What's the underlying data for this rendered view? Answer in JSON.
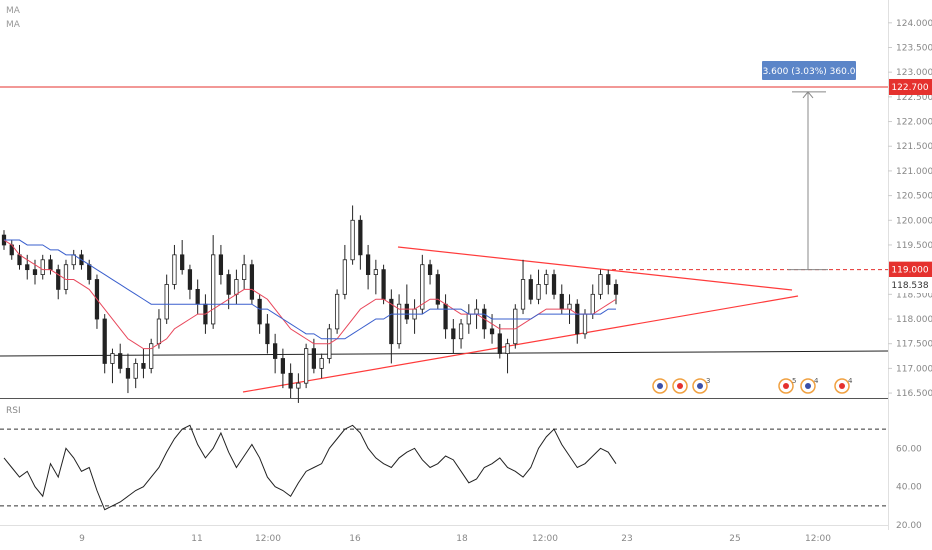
{
  "indicators": {
    "ma1": "MA",
    "ma2": "MA",
    "rsi": "RSI"
  },
  "colors": {
    "up": "#222222",
    "down": "#222222",
    "ma_fast": "#e8485c",
    "ma_slow": "#3a5fcd",
    "trendline": "#ff3b3b",
    "resistance": "#e5312e",
    "support": "#222222",
    "rsi": "#222222",
    "badge_bg": "#5b85c8",
    "price_tag_red": "#e5312e"
  },
  "measure_label": "3.600 (3.03%) 360.0",
  "price_tags": {
    "resistance": "122.700",
    "target": "119.000",
    "last": "118.538"
  },
  "event_marker_labels": [
    "3",
    "5",
    "4",
    "4"
  ],
  "chart_data": {
    "type": "line",
    "candles": [
      [
        119.7,
        119.8,
        119.4,
        119.5
      ],
      [
        119.5,
        119.6,
        119.2,
        119.3
      ],
      [
        119.3,
        119.5,
        119.0,
        119.1
      ],
      [
        119.1,
        119.3,
        118.8,
        119.0
      ],
      [
        119.0,
        119.2,
        118.7,
        118.9
      ],
      [
        118.9,
        119.3,
        118.8,
        119.2
      ],
      [
        119.2,
        119.3,
        118.9,
        119.0
      ],
      [
        119.0,
        119.1,
        118.4,
        118.6
      ],
      [
        118.6,
        119.2,
        118.5,
        119.1
      ],
      [
        119.1,
        119.4,
        119.0,
        119.3
      ],
      [
        119.3,
        119.4,
        119.0,
        119.1
      ],
      [
        119.1,
        119.2,
        118.7,
        118.8
      ],
      [
        118.8,
        118.9,
        117.8,
        118.0
      ],
      [
        118.0,
        118.1,
        116.9,
        117.1
      ],
      [
        117.1,
        117.4,
        116.7,
        117.3
      ],
      [
        117.3,
        117.5,
        116.9,
        117.0
      ],
      [
        117.0,
        117.3,
        116.5,
        116.8
      ],
      [
        116.8,
        117.2,
        116.6,
        117.1
      ],
      [
        117.1,
        117.4,
        116.8,
        117.0
      ],
      [
        117.0,
        117.6,
        116.9,
        117.5
      ],
      [
        117.5,
        118.2,
        117.4,
        118.0
      ],
      [
        118.0,
        118.9,
        117.9,
        118.7
      ],
      [
        118.7,
        119.5,
        118.6,
        119.3
      ],
      [
        119.3,
        119.6,
        118.9,
        119.0
      ],
      [
        119.0,
        119.1,
        118.4,
        118.6
      ],
      [
        118.6,
        118.8,
        118.1,
        118.3
      ],
      [
        118.3,
        118.5,
        117.7,
        117.9
      ],
      [
        117.9,
        119.7,
        117.8,
        119.3
      ],
      [
        119.3,
        119.5,
        118.7,
        118.9
      ],
      [
        118.9,
        119.0,
        118.2,
        118.5
      ],
      [
        118.5,
        119.0,
        118.3,
        118.8
      ],
      [
        118.8,
        119.3,
        118.6,
        119.1
      ],
      [
        119.1,
        119.2,
        118.3,
        118.4
      ],
      [
        118.4,
        118.5,
        117.7,
        117.9
      ],
      [
        117.9,
        118.1,
        117.3,
        117.5
      ],
      [
        117.5,
        117.7,
        116.9,
        117.2
      ],
      [
        117.2,
        117.4,
        116.6,
        116.9
      ],
      [
        116.9,
        117.1,
        116.4,
        116.6
      ],
      [
        116.6,
        116.9,
        116.3,
        116.7
      ],
      [
        116.7,
        117.5,
        116.6,
        117.4
      ],
      [
        117.4,
        117.6,
        116.9,
        117.0
      ],
      [
        117.0,
        117.3,
        116.8,
        117.2
      ],
      [
        117.2,
        117.9,
        117.1,
        117.8
      ],
      [
        117.8,
        118.6,
        117.7,
        118.5
      ],
      [
        118.5,
        119.5,
        118.4,
        119.2
      ],
      [
        119.2,
        120.3,
        119.1,
        120.0
      ],
      [
        120.0,
        120.1,
        119.0,
        119.3
      ],
      [
        119.3,
        119.5,
        118.6,
        118.9
      ],
      [
        118.9,
        119.2,
        118.5,
        119.0
      ],
      [
        119.0,
        119.1,
        118.3,
        118.4
      ],
      [
        118.4,
        118.6,
        117.1,
        117.5
      ],
      [
        117.5,
        118.5,
        117.4,
        118.3
      ],
      [
        118.3,
        118.7,
        117.9,
        118.0
      ],
      [
        118.0,
        118.4,
        117.7,
        118.2
      ],
      [
        118.2,
        119.3,
        118.1,
        119.1
      ],
      [
        119.1,
        119.2,
        118.7,
        118.9
      ],
      [
        118.9,
        119.0,
        118.2,
        118.3
      ],
      [
        118.3,
        118.5,
        117.6,
        117.8
      ],
      [
        117.8,
        118.0,
        117.3,
        117.6
      ],
      [
        117.6,
        118.0,
        117.4,
        117.9
      ],
      [
        117.9,
        118.3,
        117.7,
        118.1
      ],
      [
        118.1,
        118.4,
        117.8,
        118.2
      ],
      [
        118.2,
        118.3,
        117.6,
        117.8
      ],
      [
        117.8,
        118.1,
        117.5,
        117.7
      ],
      [
        117.7,
        117.9,
        117.2,
        117.3
      ],
      [
        117.3,
        117.6,
        116.9,
        117.5
      ],
      [
        117.5,
        118.3,
        117.4,
        118.2
      ],
      [
        118.2,
        119.2,
        118.1,
        118.8
      ],
      [
        118.8,
        118.9,
        118.3,
        118.4
      ],
      [
        118.4,
        119.0,
        118.3,
        118.7
      ],
      [
        118.7,
        119.0,
        118.5,
        118.9
      ],
      [
        118.9,
        119.0,
        118.4,
        118.5
      ],
      [
        118.5,
        118.7,
        118.1,
        118.2
      ],
      [
        118.2,
        118.5,
        117.9,
        118.3
      ],
      [
        118.3,
        118.4,
        117.5,
        117.7
      ],
      [
        117.7,
        118.2,
        117.6,
        118.1
      ],
      [
        118.1,
        118.7,
        118.0,
        118.5
      ],
      [
        118.5,
        119.0,
        118.4,
        118.9
      ],
      [
        118.9,
        119.0,
        118.5,
        118.7
      ],
      [
        118.7,
        118.8,
        118.3,
        118.5
      ]
    ],
    "ma_fast": [
      119.6,
      119.5,
      119.3,
      119.2,
      119.1,
      119.0,
      119.0,
      118.9,
      118.8,
      118.8,
      118.7,
      118.6,
      118.4,
      118.2,
      118.0,
      117.8,
      117.6,
      117.5,
      117.4,
      117.4,
      117.5,
      117.6,
      117.8,
      117.9,
      118.0,
      118.1,
      118.1,
      118.2,
      118.3,
      118.4,
      118.5,
      118.6,
      118.6,
      118.5,
      118.4,
      118.2,
      118.0,
      117.8,
      117.7,
      117.6,
      117.5,
      117.5,
      117.5,
      117.6,
      117.8,
      118.0,
      118.2,
      118.3,
      118.4,
      118.4,
      118.3,
      118.2,
      118.2,
      118.2,
      118.3,
      118.4,
      118.4,
      118.3,
      118.2,
      118.1,
      118.1,
      118.1,
      118.0,
      117.9,
      117.8,
      117.8,
      117.8,
      117.9,
      118.0,
      118.1,
      118.2,
      118.2,
      118.2,
      118.2,
      118.1,
      118.1,
      118.1,
      118.2,
      118.3,
      118.4
    ],
    "ma_slow": [
      119.6,
      119.6,
      119.6,
      119.5,
      119.5,
      119.5,
      119.4,
      119.4,
      119.3,
      119.3,
      119.2,
      119.1,
      119.0,
      118.9,
      118.8,
      118.7,
      118.6,
      118.5,
      118.4,
      118.3,
      118.3,
      118.3,
      118.3,
      118.3,
      118.3,
      118.3,
      118.3,
      118.3,
      118.3,
      118.3,
      118.3,
      118.3,
      118.3,
      118.2,
      118.2,
      118.1,
      118.0,
      117.9,
      117.8,
      117.7,
      117.7,
      117.6,
      117.6,
      117.6,
      117.6,
      117.7,
      117.8,
      117.9,
      118.0,
      118.0,
      118.1,
      118.1,
      118.1,
      118.1,
      118.1,
      118.2,
      118.2,
      118.2,
      118.2,
      118.2,
      118.1,
      118.1,
      118.1,
      118.0,
      118.0,
      118.0,
      118.0,
      118.0,
      118.0,
      118.1,
      118.1,
      118.1,
      118.1,
      118.1,
      118.1,
      118.1,
      118.1,
      118.1,
      118.2,
      118.2
    ],
    "rsi": [
      55,
      50,
      45,
      48,
      40,
      35,
      52,
      45,
      60,
      55,
      48,
      50,
      38,
      28,
      30,
      32,
      35,
      38,
      40,
      45,
      50,
      58,
      65,
      70,
      72,
      62,
      55,
      60,
      68,
      58,
      50,
      56,
      62,
      55,
      45,
      40,
      38,
      35,
      42,
      48,
      50,
      52,
      60,
      65,
      70,
      72,
      68,
      60,
      55,
      52,
      50,
      55,
      58,
      60,
      54,
      50,
      52,
      56,
      54,
      48,
      42,
      44,
      50,
      52,
      55,
      50,
      48,
      45,
      50,
      60,
      66,
      70,
      62,
      56,
      50,
      52,
      56,
      60,
      58,
      52
    ],
    "y_price_range": [
      116.4,
      124.3
    ],
    "rsi_range": [
      20,
      80
    ],
    "rsi_levels": [
      70,
      30
    ],
    "price_ticks": [
      "124.000",
      "123.500",
      "123.000",
      "122.500",
      "122.000",
      "121.500",
      "121.000",
      "120.500",
      "120.000",
      "119.500",
      "119.000",
      "118.500",
      "118.000",
      "117.500",
      "117.000",
      "116.500"
    ],
    "rsi_ticks": [
      "60.00",
      "40.00",
      "20.00"
    ],
    "x_labels": [
      "9",
      "11",
      "12:00",
      "16",
      "18",
      "12:00",
      "23",
      "25",
      "12:00"
    ],
    "resistance_level": 122.7,
    "support_level": 117.3,
    "target_level": 119.0,
    "measure": {
      "from": 119.0,
      "to": 122.6
    },
    "triangle": {
      "upper": [
        [
          119.3,
          118.4
        ]
      ],
      "lower": [
        [
          116.6,
          118.3
        ]
      ]
    },
    "event_markers": 7
  }
}
